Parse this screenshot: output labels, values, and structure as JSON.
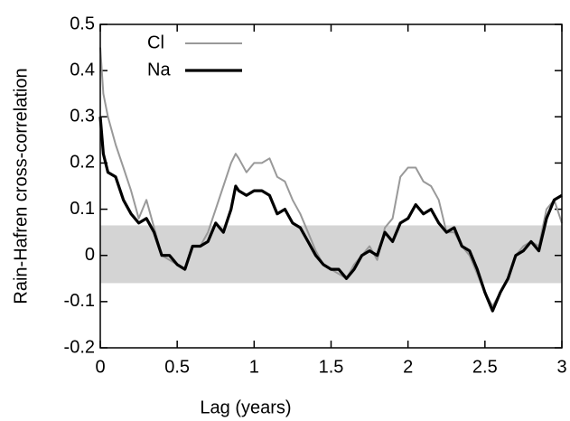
{
  "chart_data": {
    "type": "line",
    "xlabel": "Lag (years)",
    "ylabel": "Rain-Hafren cross-correlation",
    "x": [
      0,
      0.02,
      0.05,
      0.1,
      0.15,
      0.2,
      0.25,
      0.3,
      0.35,
      0.4,
      0.45,
      0.5,
      0.55,
      0.6,
      0.65,
      0.7,
      0.75,
      0.8,
      0.85,
      0.88,
      0.9,
      0.95,
      1.0,
      1.05,
      1.1,
      1.15,
      1.2,
      1.25,
      1.3,
      1.35,
      1.4,
      1.45,
      1.5,
      1.55,
      1.6,
      1.65,
      1.7,
      1.75,
      1.8,
      1.85,
      1.9,
      1.95,
      2.0,
      2.05,
      2.1,
      2.15,
      2.2,
      2.25,
      2.3,
      2.35,
      2.4,
      2.45,
      2.5,
      2.55,
      2.6,
      2.65,
      2.7,
      2.75,
      2.8,
      2.85,
      2.9,
      2.95,
      3.0
    ],
    "series": [
      {
        "name": "Cl",
        "color": "#999999",
        "values": [
          0.45,
          0.35,
          0.3,
          0.24,
          0.19,
          0.14,
          0.08,
          0.12,
          0.06,
          0.0,
          -0.01,
          -0.02,
          -0.03,
          0.02,
          0.02,
          0.05,
          0.1,
          0.15,
          0.2,
          0.22,
          0.21,
          0.18,
          0.2,
          0.2,
          0.21,
          0.17,
          0.16,
          0.12,
          0.09,
          0.05,
          0.01,
          -0.02,
          -0.03,
          -0.04,
          -0.05,
          -0.02,
          0.0,
          0.02,
          -0.01,
          0.06,
          0.08,
          0.17,
          0.19,
          0.19,
          0.16,
          0.15,
          0.12,
          0.05,
          0.05,
          0.02,
          0.0,
          -0.04,
          -0.08,
          -0.11,
          -0.08,
          -0.05,
          0.0,
          0.02,
          0.03,
          0.02,
          0.1,
          0.12,
          0.07
        ]
      },
      {
        "name": "Na",
        "color": "#000000",
        "values": [
          0.3,
          0.22,
          0.18,
          0.17,
          0.12,
          0.09,
          0.07,
          0.08,
          0.05,
          0.0,
          0.0,
          -0.02,
          -0.03,
          0.02,
          0.02,
          0.03,
          0.07,
          0.05,
          0.1,
          0.15,
          0.14,
          0.13,
          0.14,
          0.14,
          0.13,
          0.09,
          0.1,
          0.07,
          0.06,
          0.03,
          0.0,
          -0.02,
          -0.03,
          -0.03,
          -0.05,
          -0.03,
          0.0,
          0.01,
          0.0,
          0.05,
          0.03,
          0.07,
          0.08,
          0.11,
          0.09,
          0.1,
          0.07,
          0.05,
          0.06,
          0.02,
          0.01,
          -0.03,
          -0.08,
          -0.12,
          -0.08,
          -0.05,
          0.0,
          0.01,
          0.03,
          0.01,
          0.08,
          0.12,
          0.13
        ]
      }
    ],
    "band": [
      -0.06,
      0.065
    ],
    "band_color": "#d4d4d4",
    "xlim": [
      0,
      3
    ],
    "xticks": [
      0,
      0.5,
      1,
      1.5,
      2,
      2.5,
      3
    ],
    "ylim": [
      -0.2,
      0.5
    ],
    "yticks": [
      -0.2,
      -0.1,
      0,
      0.1,
      0.2,
      0.3,
      0.4,
      0.5
    ],
    "legend": "upper left"
  }
}
